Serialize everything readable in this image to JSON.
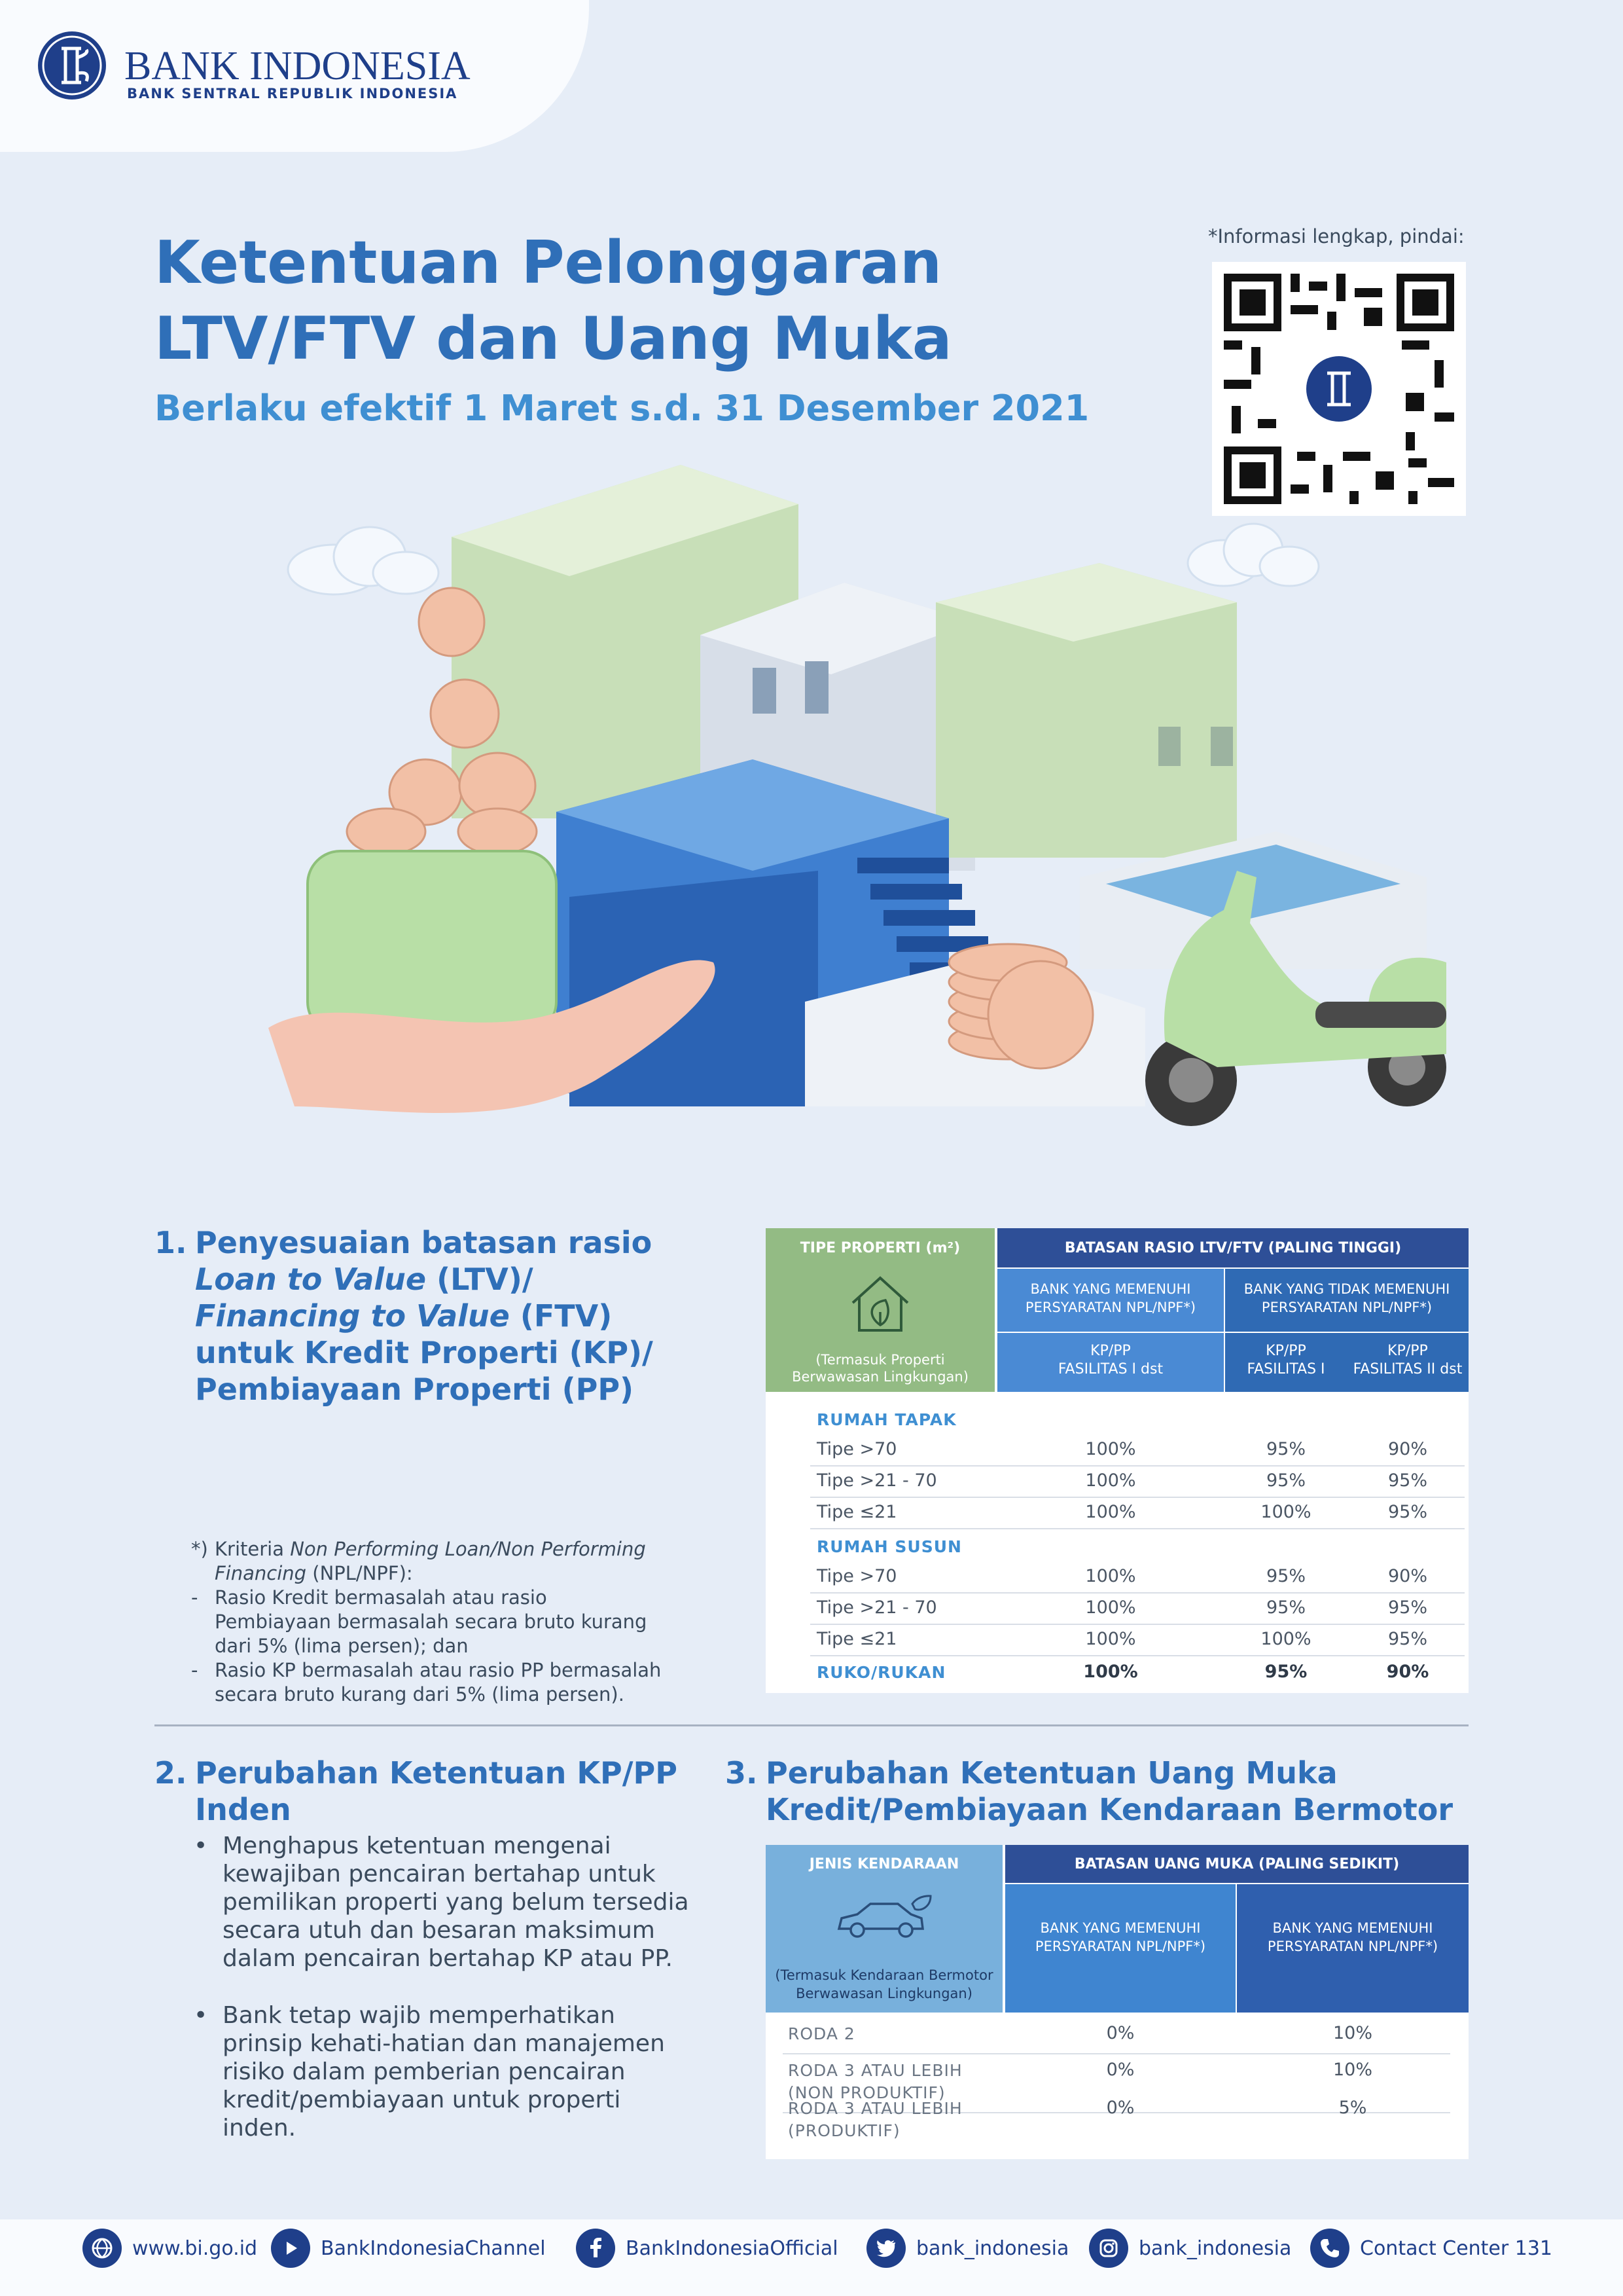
{
  "header": {
    "bank_name": "BANK INDONESIA",
    "bank_subtitle": "BANK SENTRAL REPUBLIK INDONESIA"
  },
  "title": {
    "line1": "Ketentuan Pelonggaran",
    "line2": "LTV/FTV dan Uang Muka",
    "subtitle": "Berlaku efektif 1 Maret s.d. 31 Desember 2021"
  },
  "qr": {
    "note": "*Informasi lengkap, pindai:"
  },
  "section1": {
    "number": "1.",
    "line1": "Penyesuaian batasan rasio",
    "line2_italic": "Loan to Value",
    "line2_rest": " (LTV)/",
    "line3_italic": "Financing to Value",
    "line3_rest": " (FTV)",
    "line4": "untuk Kredit Properti (KP)/",
    "line5": "Pembiayaan Properti (PP)",
    "footnote": {
      "marker": "*)",
      "l1_pre": "Kriteria ",
      "l1_italic": "Non Performing Loan/Non Performing",
      "l2_italic": "Financing",
      "l2_rest": " (NPL/NPF):",
      "b1_marker": "-",
      "b1_l1": "Rasio Kredit bermasalah atau rasio",
      "b1_l2": "Pembiayaan bermasalah secara bruto kurang",
      "b1_l3": "dari 5% (lima persen); dan",
      "b2_marker": "-",
      "b2_l1": "Rasio KP bermasalah atau rasio PP bermasalah",
      "b2_l2": "secara bruto kurang dari 5% (lima persen)."
    }
  },
  "table1": {
    "col_tipe": "TIPE PROPERTI (m²)",
    "tipe_note_l1": "(Termasuk Properti",
    "tipe_note_l2": "Berwawasan Lingkungan)",
    "col_batasan": "BATASAN RASIO LTV/FTV (PALING TINGGI)",
    "memenuhi_l1": "BANK YANG MEMENUHI",
    "memenuhi_l2": "PERSYARATAN NPL/NPF*)",
    "tidak_l1": "BANK YANG TIDAK MEMENUHI",
    "tidak_l2": "PERSYARATAN NPL/NPF*)",
    "kp1_l1": "KP/PP",
    "kp1_l2": "FASILITAS I dst",
    "kp2_l1": "KP/PP",
    "kp2_l2": "FASILITAS I",
    "kp3_l1": "KP/PP",
    "kp3_l2": "FASILITAS II dst",
    "group1": "RUMAH TAPAK",
    "group2": "RUMAH SUSUN",
    "group3": "RUKO/RUKAN",
    "rows": [
      {
        "label": "Tipe >70",
        "a": "100%",
        "b": "95%",
        "c": "90%"
      },
      {
        "label": "Tipe >21 - 70",
        "a": "100%",
        "b": "95%",
        "c": "95%"
      },
      {
        "label": "Tipe ≤21",
        "a": "100%",
        "b": "100%",
        "c": "95%"
      },
      {
        "label": "Tipe >70",
        "a": "100%",
        "b": "95%",
        "c": "90%"
      },
      {
        "label": "Tipe >21 - 70",
        "a": "100%",
        "b": "95%",
        "c": "95%"
      },
      {
        "label": "Tipe ≤21",
        "a": "100%",
        "b": "100%",
        "c": "95%"
      },
      {
        "label": "",
        "a": "100%",
        "b": "95%",
        "c": "90%"
      }
    ]
  },
  "section2": {
    "number": "2.",
    "line1": "Perubahan Ketentuan KP/PP",
    "line2": "Inden",
    "bullet": "•",
    "item1": [
      "Menghapus ketentuan mengenai",
      "kewajiban pencairan bertahap untuk",
      "pemilikan properti yang belum tersedia",
      "secara utuh dan besaran maksimum",
      "dalam pencairan bertahap KP atau PP."
    ],
    "item2": [
      "Bank tetap wajib memperhatikan",
      "prinsip kehati-hatian dan manajemen",
      "risiko dalam pemberian pencairan",
      "kredit/pembiayaan untuk properti",
      "inden."
    ]
  },
  "section3": {
    "number": "3.",
    "line1": "Perubahan Ketentuan Uang Muka",
    "line2": "Kredit/Pembiayaan Kendaraan Bermotor"
  },
  "table2": {
    "col_jenis": "JENIS KENDARAAN",
    "jenis_note_l1": "(Termasuk Kendaraan Bermotor",
    "jenis_note_l2": "Berwawasan Lingkungan)",
    "col_batasan": "BATASAN UANG MUKA (PALING SEDIKIT)",
    "memenuhi_l1": "BANK YANG MEMENUHI",
    "memenuhi_l2": "PERSYARATAN NPL/NPF*)",
    "memenuhi2_l1": "BANK YANG MEMENUHI",
    "memenuhi2_l2": "PERSYARATAN NPL/NPF*)",
    "rows": [
      {
        "l1": "RODA 2",
        "l2": "",
        "a": "0%",
        "b": "10%"
      },
      {
        "l1": "RODA 3 ATAU LEBIH",
        "l2": "(NON PRODUKTIF)",
        "a": "0%",
        "b": "10%"
      },
      {
        "l1": "RODA 3 ATAU LEBIH",
        "l2": "(PRODUKTIF)",
        "a": "0%",
        "b": "5%"
      }
    ]
  },
  "footer": {
    "website": "www.bi.go.id",
    "youtube": "BankIndonesiaChannel",
    "facebook": "BankIndonesiaOfficial",
    "twitter": "bank_indonesia",
    "instagram": "bank_indonesia",
    "contact": "Contact Center 131"
  },
  "colors": {
    "title_blue": "#2f6fb8",
    "navy": "#1f3f8a",
    "table_green": "#93bb84",
    "table_light_blue": "#78b0dc",
    "table_blue": "#3c7bc8",
    "background": "#e6edf7"
  }
}
